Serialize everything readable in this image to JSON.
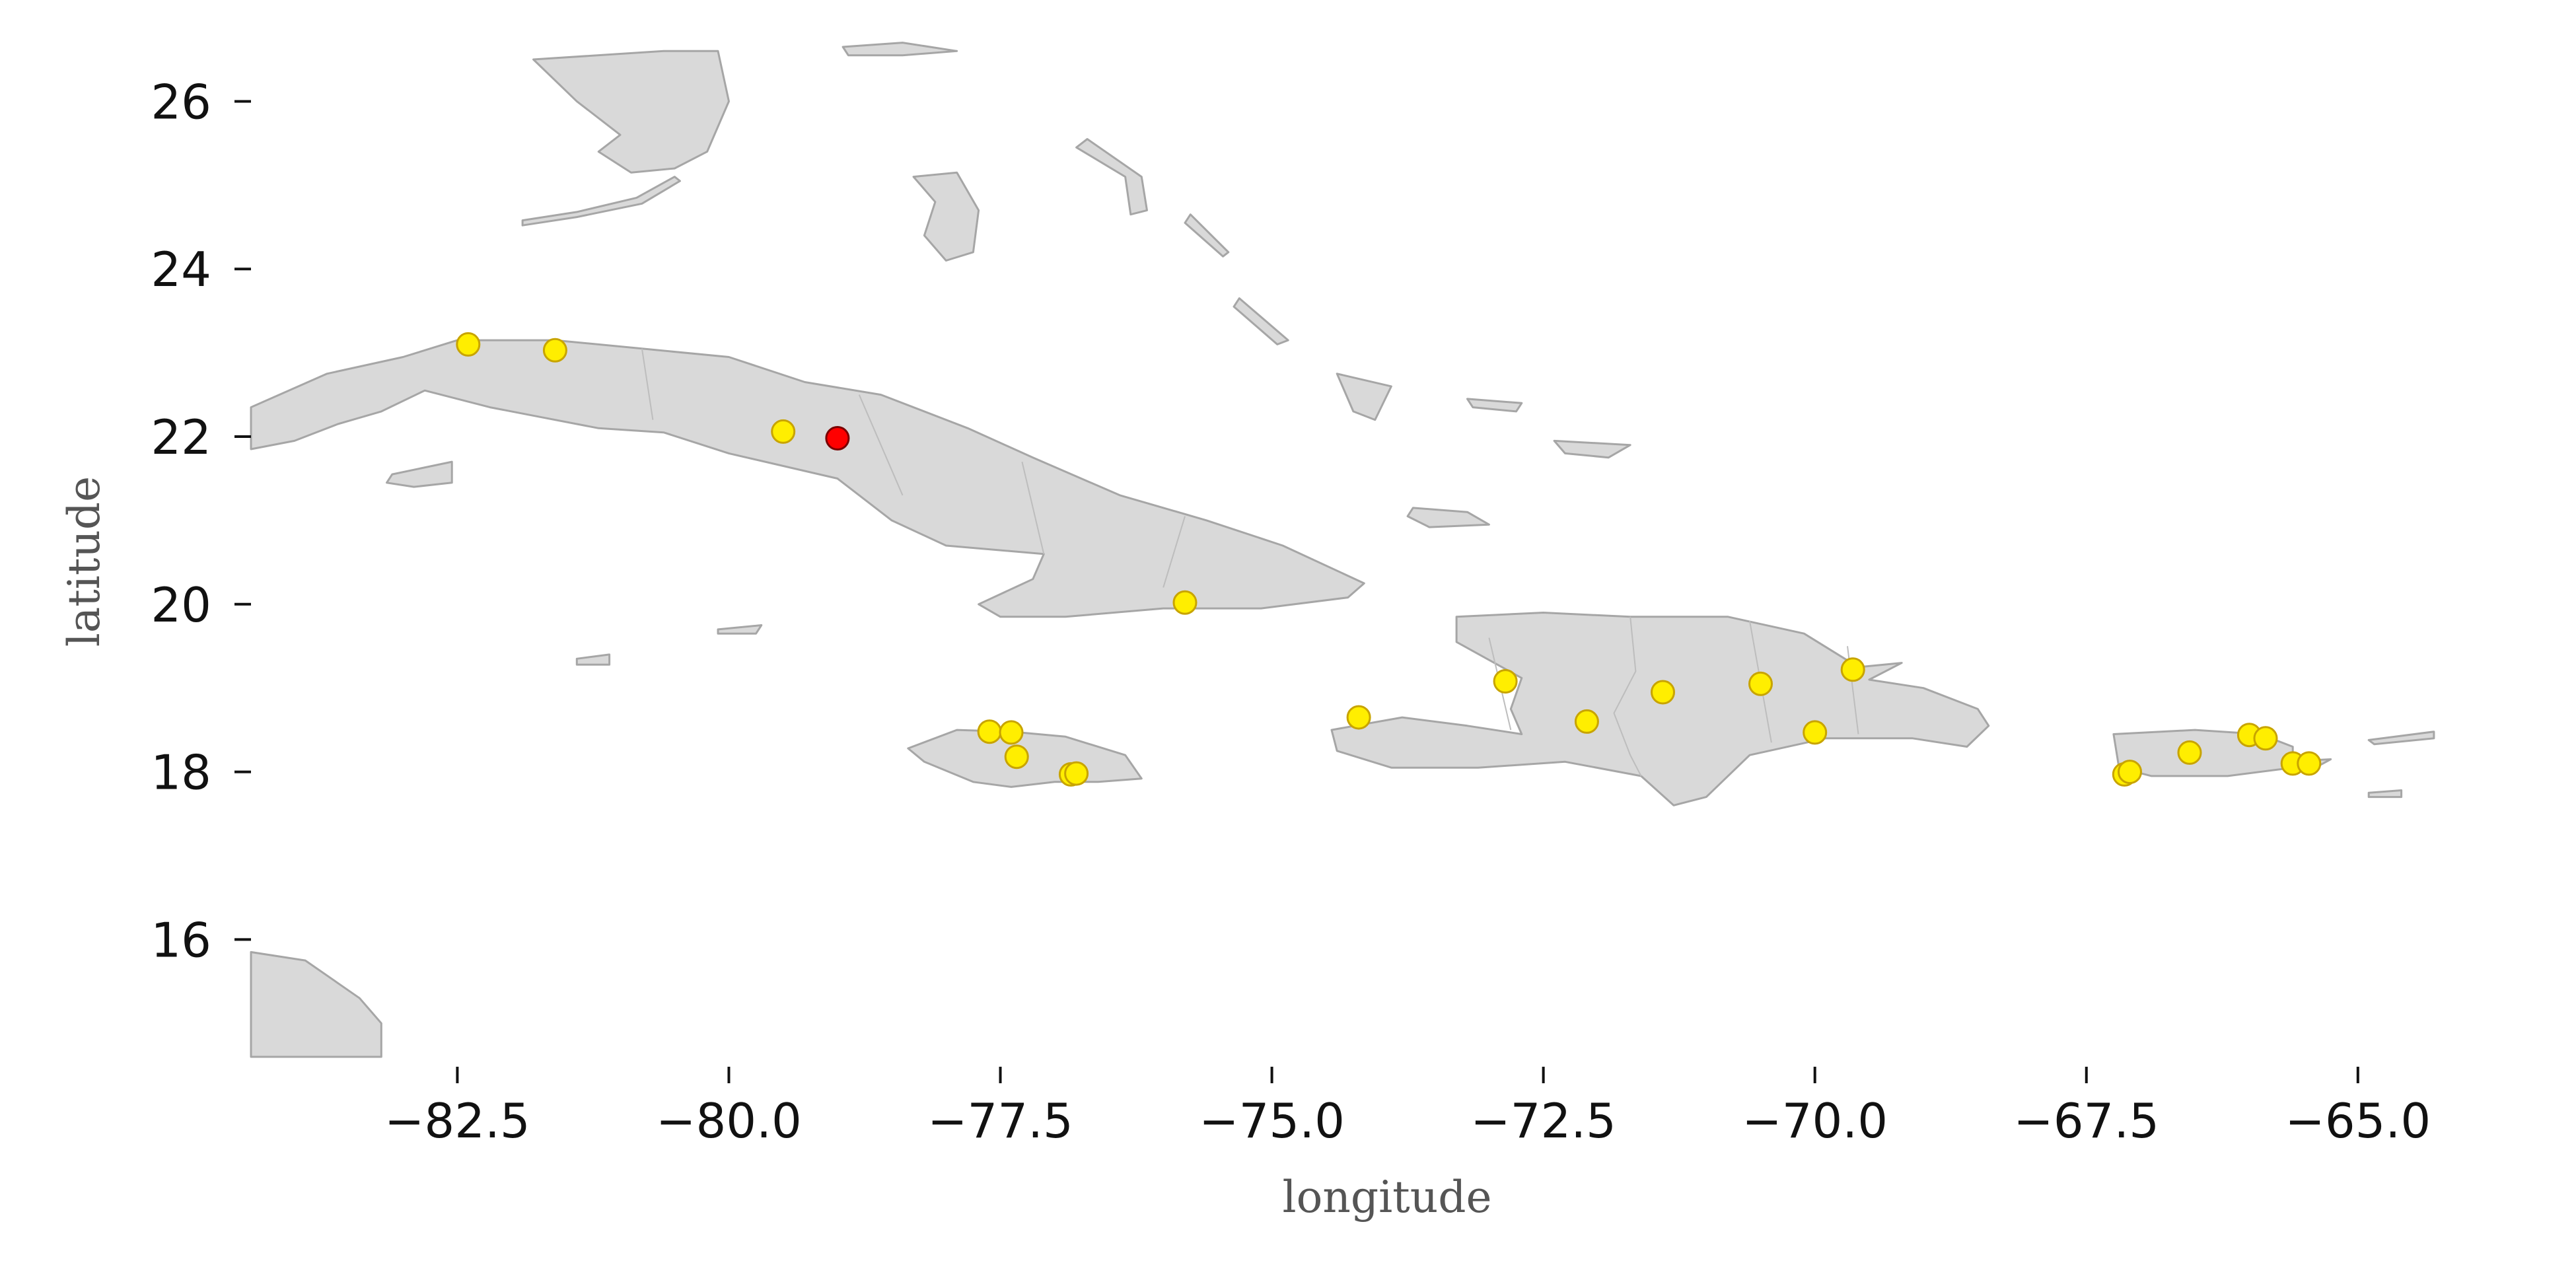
{
  "chart_data": {
    "type": "scatter",
    "title": "",
    "xlabel": "longitude",
    "ylabel": "latitude",
    "xlim": [
      -84.4,
      -63.6
    ],
    "ylim": [
      14.6,
      26.5
    ],
    "xticks": [
      -82.5,
      -80.0,
      -77.5,
      -75.0,
      -72.5,
      -70.0,
      -67.5,
      -65.0
    ],
    "xtick_labels": [
      "−82.5",
      "−80.0",
      "−77.5",
      "−75.0",
      "−72.5",
      "−70.0",
      "−67.5",
      "−65.0"
    ],
    "yticks": [
      16,
      18,
      20,
      22,
      24,
      26
    ],
    "ytick_labels": [
      "16",
      "18",
      "20",
      "22",
      "24",
      "26"
    ],
    "grid": false,
    "colors": {
      "land": "#d9d9d9",
      "coast": "#a6a6a6",
      "point": "#ffee00",
      "point_edge": "#c8a400",
      "highlight": "#ff0000",
      "highlight_edge": "#7a0000"
    },
    "series": [
      {
        "points": [
          {
            "lon": -82.4,
            "lat": 23.1
          },
          {
            "lon": -81.6,
            "lat": 23.03
          },
          {
            "lon": -79.5,
            "lat": 22.06
          },
          {
            "lon": -75.8,
            "lat": 20.02
          },
          {
            "lon": -77.6,
            "lat": 18.48
          },
          {
            "lon": -77.4,
            "lat": 18.47
          },
          {
            "lon": -77.35,
            "lat": 18.18
          },
          {
            "lon": -76.85,
            "lat": 17.97
          },
          {
            "lon": -76.8,
            "lat": 17.98
          },
          {
            "lon": -74.2,
            "lat": 18.65
          },
          {
            "lon": -72.85,
            "lat": 19.08
          },
          {
            "lon": -72.1,
            "lat": 18.6
          },
          {
            "lon": -71.4,
            "lat": 18.95
          },
          {
            "lon": -70.5,
            "lat": 19.05
          },
          {
            "lon": -70.0,
            "lat": 18.47
          },
          {
            "lon": -69.65,
            "lat": 19.22
          },
          {
            "lon": -67.15,
            "lat": 17.97
          },
          {
            "lon": -67.1,
            "lat": 18.0
          },
          {
            "lon": -66.55,
            "lat": 18.23
          },
          {
            "lon": -66.0,
            "lat": 18.44
          },
          {
            "lon": -65.85,
            "lat": 18.4
          },
          {
            "lon": -65.6,
            "lat": 18.1
          },
          {
            "lon": -65.45,
            "lat": 18.1
          }
        ]
      },
      {
        "points": [
          {
            "lon": -79.0,
            "lat": 21.98
          }
        ]
      }
    ]
  }
}
